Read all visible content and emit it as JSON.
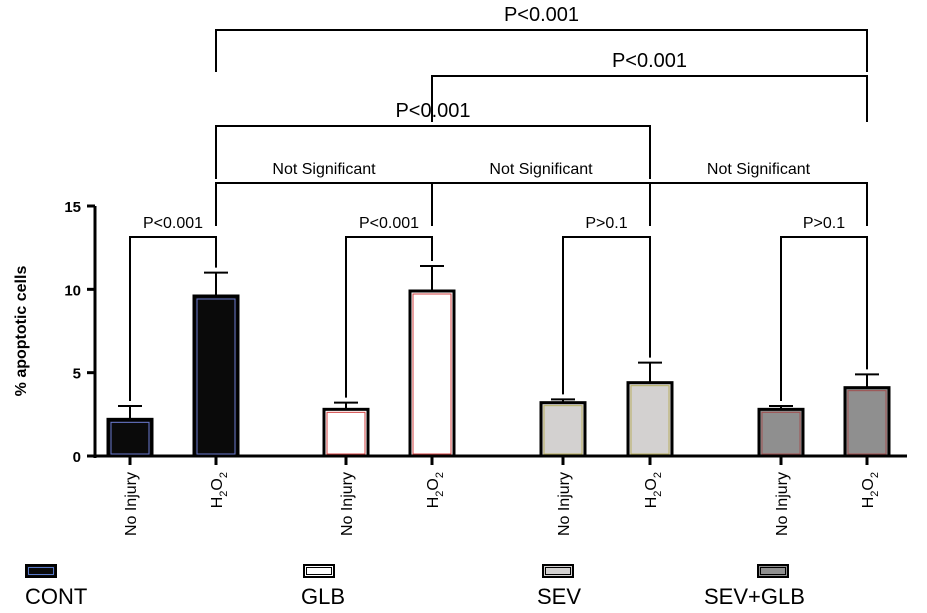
{
  "chart_data": {
    "type": "bar",
    "ylabel": "% apoptotic cells",
    "ylim": [
      0,
      15
    ],
    "yticks": [
      0,
      5,
      10,
      15
    ],
    "groups": [
      {
        "name": "CONT",
        "color": "#0a0a0a",
        "edge": "#6a7ad0",
        "legend_edge": "#5878c8",
        "bars": [
          {
            "label": "No Injury",
            "value": 2.2,
            "error": 0.8
          },
          {
            "label": "H2O2",
            "value": 9.6,
            "error": 1.4
          }
        ]
      },
      {
        "name": "GLB",
        "color": "#ffffff",
        "edge": "#d04040",
        "legend_edge": "#000000",
        "bars": [
          {
            "label": "No Injury",
            "value": 2.8,
            "error": 0.4
          },
          {
            "label": "H2O2",
            "value": 9.9,
            "error": 1.5
          }
        ]
      },
      {
        "name": "SEV",
        "color": "#d3d1d0",
        "edge": "#b8b060",
        "legend_edge": "#000000",
        "bars": [
          {
            "label": "No Injury",
            "value": 3.2,
            "error": 0.2
          },
          {
            "label": "H2O2",
            "value": 4.4,
            "error": 1.2
          }
        ]
      },
      {
        "name": "SEV+GLB",
        "color": "#8f8f8f",
        "edge": "#a05050",
        "legend_edge": "#000000",
        "bars": [
          {
            "label": "No Injury",
            "value": 2.8,
            "error": 0.2
          },
          {
            "label": "H2O2",
            "value": 4.1,
            "error": 0.8
          }
        ]
      }
    ],
    "comparisons": [
      {
        "from": 0,
        "to": 1,
        "label": "P<0.001"
      },
      {
        "from": 2,
        "to": 3,
        "label": "P<0.001"
      },
      {
        "from": 4,
        "to": 5,
        "label": "P>0.1"
      },
      {
        "from": 6,
        "to": 7,
        "label": "P>0.1"
      },
      {
        "from": 1,
        "to": 3,
        "label": "Not Significant"
      },
      {
        "from": 3,
        "to": 5,
        "label": "Not Significant"
      },
      {
        "from": 5,
        "to": 7,
        "label": "Not Significant"
      },
      {
        "from": 1,
        "to": 5,
        "label": "P<0.001"
      },
      {
        "from": 3,
        "to": 7,
        "label": "P<0.001"
      },
      {
        "from": 1,
        "to": 7,
        "label": "P<0.001"
      }
    ]
  }
}
